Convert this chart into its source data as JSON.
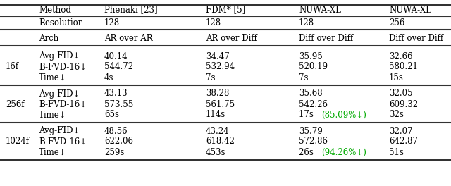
{
  "fig_width": 6.4,
  "fig_height": 2.64,
  "dpi": 100,
  "header_row1": [
    "Method",
    "Phenaki [23]",
    "FDM* [5]",
    "NUWA-XL",
    "NUWA-XL"
  ],
  "header_row2": [
    "Resolution",
    "128",
    "128",
    "128",
    "256"
  ],
  "header_row3": [
    "Arch",
    "AR over AR",
    "AR over Diff",
    "Diff over Diff",
    "Diff over Diff"
  ],
  "row_groups": [
    {
      "label": "16f",
      "rows": [
        [
          "Avg-FID↓",
          "40.14",
          "34.47",
          "35.95",
          "32.66"
        ],
        [
          "B-FVD-16↓",
          "544.72",
          "532.94",
          "520.19",
          "580.21"
        ],
        [
          "Time↓",
          "4s",
          "7s",
          "7s",
          "15s"
        ]
      ]
    },
    {
      "label": "256f",
      "rows": [
        [
          "Avg-FID↓",
          "43.13",
          "38.28",
          "35.68",
          "32.05"
        ],
        [
          "B-FVD-16↓",
          "573.55",
          "561.75",
          "542.26",
          "609.32"
        ],
        [
          "Time↓",
          "65s",
          "114s",
          "17s (85.09%↓)",
          "32s"
        ]
      ],
      "special_cell": [
        2,
        3,
        "green"
      ]
    },
    {
      "label": "1024f",
      "rows": [
        [
          "Avg-FID↓",
          "48.56",
          "43.24",
          "35.79",
          "32.07"
        ],
        [
          "B-FVD-16↓",
          "622.06",
          "618.42",
          "572.86",
          "642.87"
        ],
        [
          "Time↓",
          "259s",
          "453s",
          "26s (94.26%↓)",
          "51s"
        ]
      ],
      "special_cell": [
        2,
        3,
        "green"
      ]
    }
  ],
  "font_size": 8.5,
  "font_family": "DejaVu Serif",
  "green_color": "#00aa00",
  "line_color": "#333333",
  "thick_lw": 1.5,
  "thin_lw": 0.8
}
